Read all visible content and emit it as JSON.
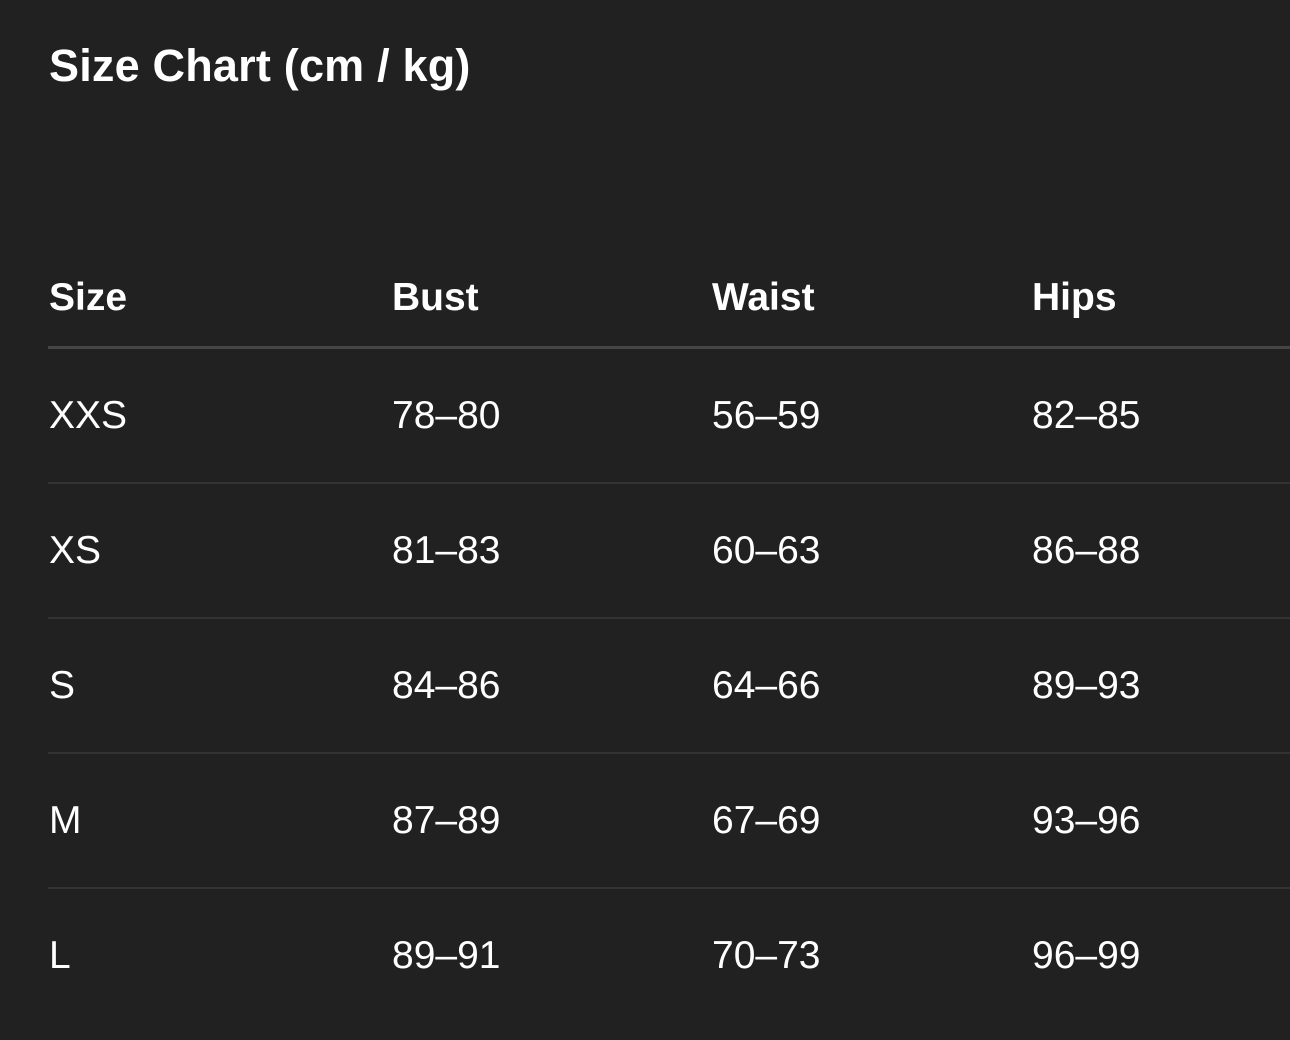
{
  "title": "Size Chart (cm / kg)",
  "table": {
    "headers": [
      "Size",
      "Bust",
      "Waist",
      "Hips"
    ],
    "rows": [
      [
        "XXS",
        "78–80",
        "56–59",
        "82–85"
      ],
      [
        "XS",
        "81–83",
        "60–63",
        "86–88"
      ],
      [
        "S",
        "84–86",
        "64–66",
        "89–93"
      ],
      [
        "M",
        "87–89",
        "67–69",
        "93–96"
      ],
      [
        "L",
        "89–91",
        "70–73",
        "96–99"
      ]
    ]
  }
}
